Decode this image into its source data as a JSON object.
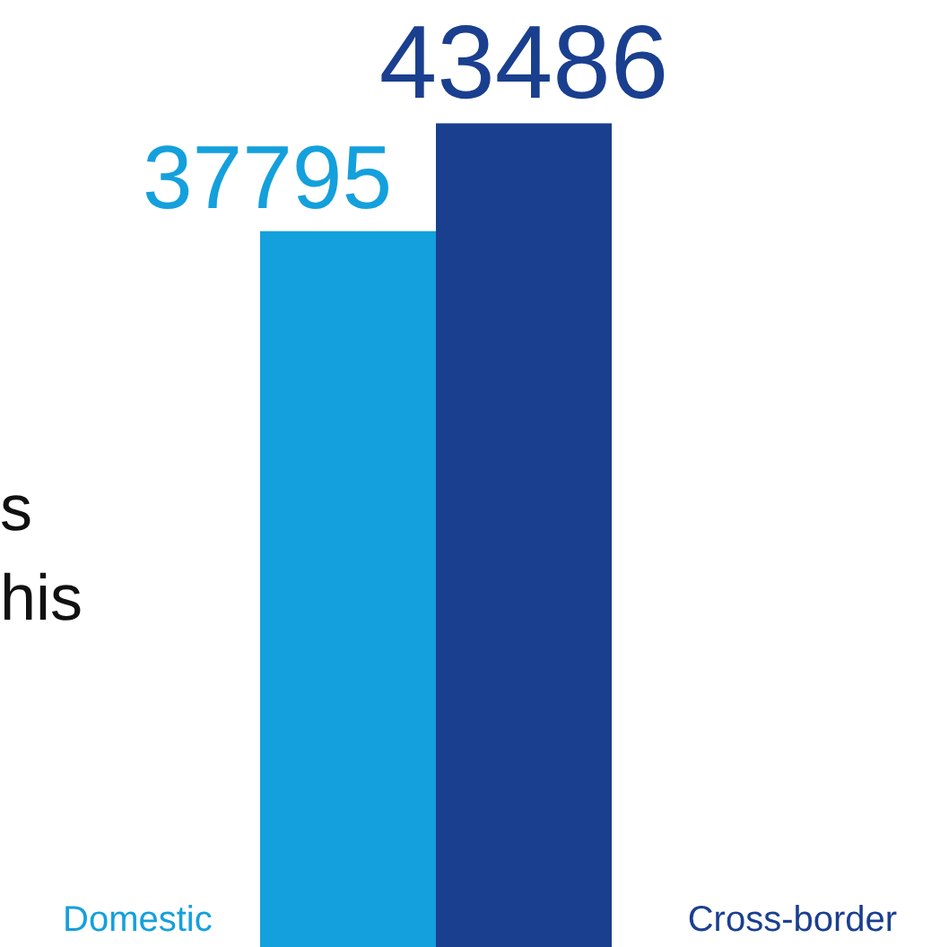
{
  "chart_data": {
    "type": "bar",
    "categories": [
      null
    ],
    "series": [
      {
        "name": "Domestic",
        "color": "#14a0dc",
        "values": [
          37795
        ]
      },
      {
        "name": "Cross-border",
        "color": "#1a3f8f",
        "values": [
          43486
        ]
      }
    ],
    "tick_labels": false,
    "data_labels": true,
    "legend": "bottom",
    "annotations": [
      "s",
      "his"
    ]
  }
}
